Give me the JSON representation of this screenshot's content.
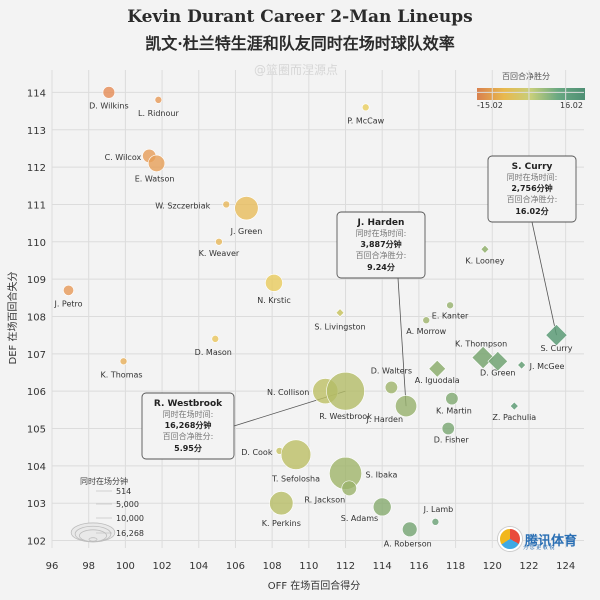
{
  "header": {
    "title_en": "Kevin Durant Career 2-Man Lineups",
    "title_cn": "凯文·杜兰特生涯和队友同时在场时球队效率",
    "watermark": "@篮圈而涅源点"
  },
  "legend": {
    "color_title": "百回合净胜分",
    "color_min": "-15.02",
    "color_max": "16.02",
    "size_title": "同时在场分钟",
    "size_values": [
      "514",
      "5,000",
      "10,000",
      "16,268"
    ]
  },
  "logo": {
    "text": "腾讯体育",
    "sub": "为 您 更 敏 锐"
  },
  "annotations": [
    {
      "player": "S. Curry",
      "l1": "同时在场时间:",
      "v1": "2,756分钟",
      "l2": "百回合净胜分:",
      "v2": "16.02分"
    },
    {
      "player": "J. Harden",
      "l1": "同时在场时间:",
      "v1": "3,887分钟",
      "l2": "百回合净胜分:",
      "v2": "9.24分"
    },
    {
      "player": "R. Westbrook",
      "l1": "同时在场时间:",
      "v1": "16,268分钟",
      "l2": "百回合净胜分:",
      "v2": "5.95分"
    }
  ],
  "chart_data": {
    "type": "scatter",
    "xlabel": "OFF 在场百回合得分",
    "ylabel": "DEF 在场百回合失分",
    "xlim": [
      96,
      125
    ],
    "ylim": [
      101.8,
      114.6
    ],
    "xticks": [
      96,
      98,
      100,
      102,
      104,
      106,
      108,
      110,
      112,
      114,
      116,
      118,
      120,
      122,
      124
    ],
    "yticks": [
      102,
      103,
      104,
      105,
      106,
      107,
      108,
      109,
      110,
      111,
      112,
      113,
      114
    ],
    "size_encoding": "同时在场分钟",
    "color_encoding": "百回合净胜分",
    "colors": {
      "neg": "#e58a55",
      "mid": "#e8cf5c",
      "pos": "#5a9a76"
    },
    "points": [
      {
        "label": "D. Wilkins",
        "x": 99.1,
        "y": 114.0,
        "net": -14.9,
        "minutes": 900,
        "shape": "circle"
      },
      {
        "label": "L. Ridnour",
        "x": 101.8,
        "y": 113.8,
        "net": -12.0,
        "minutes": 514,
        "shape": "circle"
      },
      {
        "label": "P. McCaw",
        "x": 113.1,
        "y": 113.6,
        "net": -0.5,
        "minutes": 514,
        "shape": "circle"
      },
      {
        "label": "C. Wilcox",
        "x": 101.3,
        "y": 112.3,
        "net": -11.0,
        "minutes": 1200,
        "shape": "circle"
      },
      {
        "label": "E. Watson",
        "x": 101.7,
        "y": 112.1,
        "net": -10.4,
        "minutes": 2000,
        "shape": "circle"
      },
      {
        "label": "W. Szczerbiak",
        "x": 105.5,
        "y": 111.0,
        "net": -5.5,
        "minutes": 514,
        "shape": "circle"
      },
      {
        "label": "J. Green",
        "x": 106.6,
        "y": 110.9,
        "net": -4.3,
        "minutes": 5000,
        "shape": "circle"
      },
      {
        "label": "K. Weaver",
        "x": 105.1,
        "y": 110.0,
        "net": -4.9,
        "minutes": 514,
        "shape": "circle"
      },
      {
        "label": "K. Looney",
        "x": 119.6,
        "y": 109.8,
        "net": 9.8,
        "minutes": 514,
        "shape": "diamond"
      },
      {
        "label": "J. Petro",
        "x": 96.9,
        "y": 108.7,
        "net": -11.8,
        "minutes": 700,
        "shape": "circle"
      },
      {
        "label": "N. Krstic",
        "x": 108.1,
        "y": 108.9,
        "net": -0.8,
        "minutes": 2200,
        "shape": "circle"
      },
      {
        "label": "E. Kanter",
        "x": 117.7,
        "y": 108.3,
        "net": 9.4,
        "minutes": 514,
        "shape": "circle"
      },
      {
        "label": "S. Livingston",
        "x": 111.7,
        "y": 108.1,
        "net": 3.6,
        "minutes": 514,
        "shape": "diamond"
      },
      {
        "label": "A. Morrow",
        "x": 116.4,
        "y": 107.9,
        "net": 8.5,
        "minutes": 514,
        "shape": "circle"
      },
      {
        "label": "S. Curry",
        "x": 123.5,
        "y": 107.5,
        "net": 16.02,
        "minutes": 2756,
        "shape": "diamond"
      },
      {
        "label": "D. Mason",
        "x": 104.9,
        "y": 107.4,
        "net": -2.5,
        "minutes": 514,
        "shape": "circle"
      },
      {
        "label": "K. Thompson",
        "x": 119.5,
        "y": 106.9,
        "net": 12.6,
        "minutes": 3000,
        "shape": "diamond"
      },
      {
        "label": "D. Green",
        "x": 120.3,
        "y": 106.8,
        "net": 13.5,
        "minutes": 2200,
        "shape": "diamond"
      },
      {
        "label": "J. McGee",
        "x": 121.6,
        "y": 106.7,
        "net": 14.9,
        "minutes": 514,
        "shape": "diamond"
      },
      {
        "label": "K. Thomas",
        "x": 99.9,
        "y": 106.8,
        "net": -6.9,
        "minutes": 514,
        "shape": "circle"
      },
      {
        "label": "A. Iguodala",
        "x": 117.0,
        "y": 106.6,
        "net": 10.4,
        "minutes": 1500,
        "shape": "diamond"
      },
      {
        "label": "D. Walters",
        "x": 114.5,
        "y": 106.1,
        "net": 8.4,
        "minutes": 1000,
        "shape": "circle"
      },
      {
        "label": "N. Collison",
        "x": 110.9,
        "y": 106.0,
        "net": 4.9,
        "minutes": 6000,
        "shape": "circle"
      },
      {
        "label": "R. Westbrook",
        "x": 112.0,
        "y": 106.0,
        "net": 5.95,
        "minutes": 16268,
        "shape": "circle"
      },
      {
        "label": "K. Martin",
        "x": 117.8,
        "y": 105.8,
        "net": 12.0,
        "minutes": 1000,
        "shape": "circle"
      },
      {
        "label": "Z. Pachulia",
        "x": 121.2,
        "y": 105.6,
        "net": 15.6,
        "minutes": 514,
        "shape": "diamond"
      },
      {
        "label": "J. Harden",
        "x": 115.3,
        "y": 105.6,
        "net": 9.24,
        "minutes": 3887,
        "shape": "circle"
      },
      {
        "label": "D. Fisher",
        "x": 117.6,
        "y": 105.0,
        "net": 12.6,
        "minutes": 1000,
        "shape": "circle"
      },
      {
        "label": "D. Cook",
        "x": 108.4,
        "y": 104.4,
        "net": 4.0,
        "minutes": 514,
        "shape": "circle"
      },
      {
        "label": "T. Sefolosha",
        "x": 109.3,
        "y": 104.3,
        "net": 5.0,
        "minutes": 9000,
        "shape": "circle"
      },
      {
        "label": "S. Ibaka",
        "x": 112.0,
        "y": 103.8,
        "net": 8.2,
        "minutes": 11000,
        "shape": "circle"
      },
      {
        "label": "R. Jackson",
        "x": 112.2,
        "y": 103.4,
        "net": 8.8,
        "minutes": 1500,
        "shape": "circle"
      },
      {
        "label": "K. Perkins",
        "x": 108.5,
        "y": 103.0,
        "net": 5.5,
        "minutes": 5000,
        "shape": "circle"
      },
      {
        "label": "S. Adams",
        "x": 114.0,
        "y": 102.9,
        "net": 11.1,
        "minutes": 2500,
        "shape": "circle"
      },
      {
        "label": "J. Lamb",
        "x": 116.9,
        "y": 102.5,
        "net": 14.4,
        "minutes": 514,
        "shape": "circle"
      },
      {
        "label": "A. Roberson",
        "x": 115.5,
        "y": 102.3,
        "net": 13.2,
        "minutes": 1500,
        "shape": "circle"
      }
    ]
  }
}
